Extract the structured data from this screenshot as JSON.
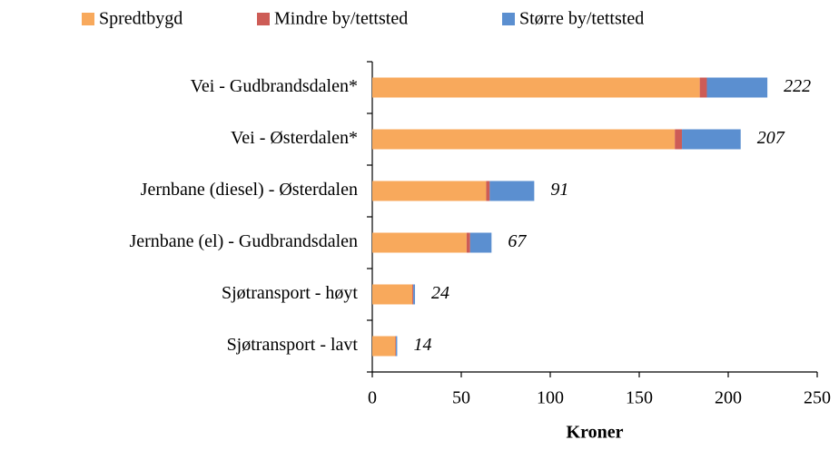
{
  "chart_data": {
    "type": "stacked-barh",
    "categories": [
      "Vei - Gudbrandsdalen*",
      "Vei - Østerdalen*",
      "Jernbane (diesel) - Østerdalen",
      "Jernbane (el) - Gudbrandsdalen",
      "Sjøtransport - høyt",
      "Sjøtransport - lavt"
    ],
    "series": [
      {
        "name": "Spredtbygd",
        "color": "#f8a95c",
        "values": [
          184,
          170,
          64,
          53,
          22.5,
          13
        ]
      },
      {
        "name": "Mindre by/tettsted",
        "color": "#cd5c56",
        "values": [
          4,
          4,
          2,
          2,
          0.5,
          0.3
        ]
      },
      {
        "name": "Større by/tettsted",
        "color": "#5b8fd0",
        "values": [
          34,
          33,
          25,
          12,
          1,
          0.7
        ]
      }
    ],
    "totals": [
      222,
      207,
      91,
      67,
      24,
      14
    ],
    "xlabel": "Kroner",
    "xlim": [
      0,
      250
    ],
    "xticks": [
      0,
      50,
      100,
      150,
      200,
      250
    ],
    "legend": "top"
  }
}
